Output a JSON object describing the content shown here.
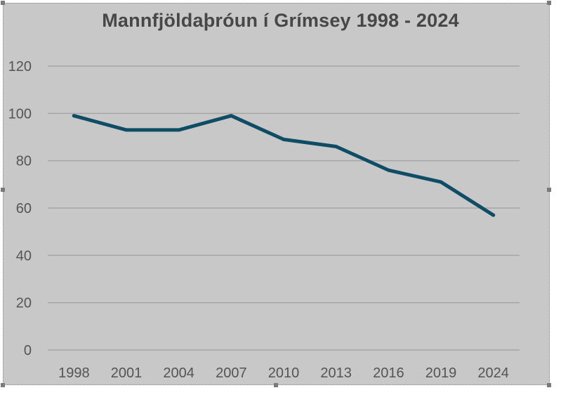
{
  "chart_data": {
    "type": "line",
    "title": "Mannfjöldaþróun í Grímsey 1998 - 2024",
    "xlabel": "",
    "ylabel": "",
    "categories": [
      "1998",
      "2001",
      "2004",
      "2007",
      "2010",
      "2013",
      "2016",
      "2019",
      "2024"
    ],
    "series": [
      {
        "values": [
          99,
          93,
          93,
          99,
          89,
          86,
          76,
          71,
          57
        ]
      }
    ],
    "ylim": [
      0,
      120
    ],
    "yticks": [
      0,
      20,
      40,
      60,
      80,
      100,
      120
    ],
    "grid": true,
    "legend": "none"
  },
  "colors": {
    "background": "#c8c8c8",
    "line": "#0f4c65",
    "grid": "#a6a6a6",
    "text": "#545454"
  }
}
